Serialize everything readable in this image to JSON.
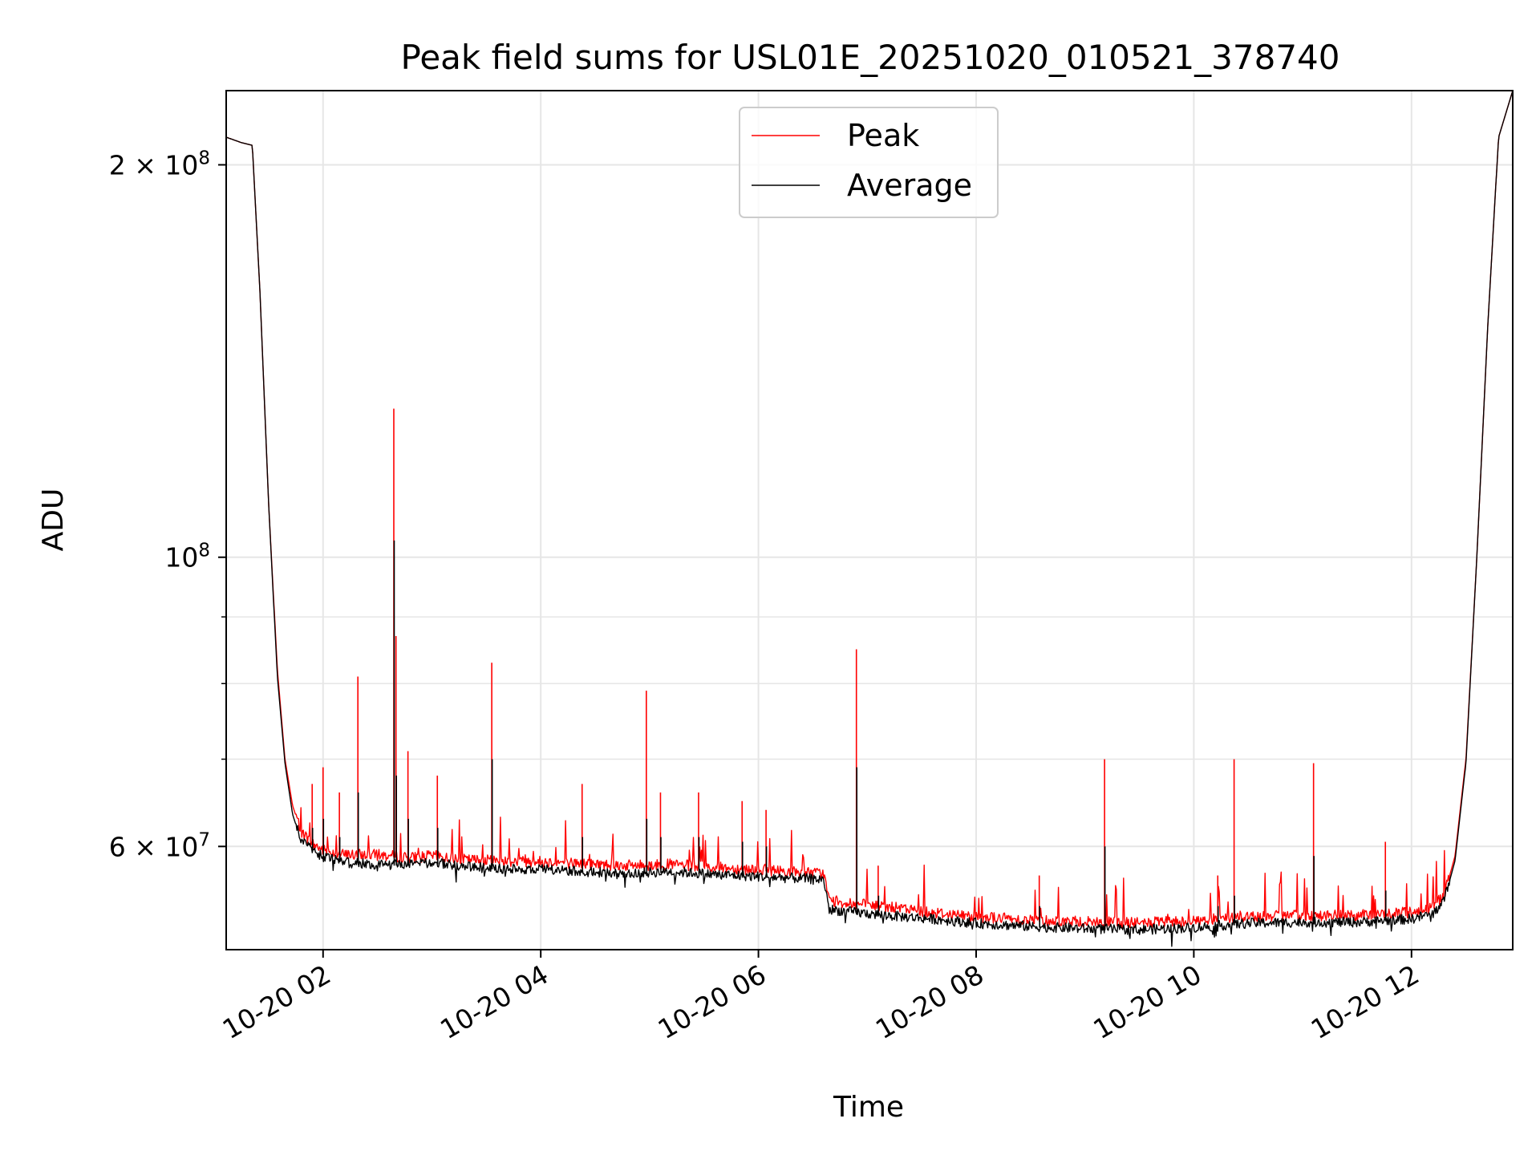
{
  "chart_data": {
    "type": "line",
    "title": "Peak field sums for USL01E_20251020_010521_378740",
    "xlabel": "Time",
    "ylabel": "ADU",
    "yscale": "log",
    "xlim": [
      1.11,
      12.93
    ],
    "ylim": [
      50000000,
      228000000
    ],
    "grid": true,
    "legend_position": "top-center",
    "x_ticks": [
      {
        "value": 2,
        "label": "10-20 02"
      },
      {
        "value": 4,
        "label": "10-20 04"
      },
      {
        "value": 6,
        "label": "10-20 06"
      },
      {
        "value": 8,
        "label": "10-20 08"
      },
      {
        "value": 10,
        "label": "10-20 10"
      },
      {
        "value": 12,
        "label": "10-20 12"
      }
    ],
    "y_major_ticks": [
      {
        "value": 200000000,
        "mant": "2",
        "base": "10",
        "exp": "8"
      },
      {
        "value": 100000000,
        "mant": "",
        "base": "10",
        "exp": "8"
      },
      {
        "value": 60000000,
        "mant": "6",
        "base": "10",
        "exp": "7"
      }
    ],
    "y_minor_ticks": [
      70000000,
      80000000,
      90000000
    ],
    "series": [
      {
        "name": "Peak",
        "color": "#ff0000",
        "x": [
          1.11,
          1.25,
          1.35,
          1.42,
          1.5,
          1.58,
          1.65,
          1.72,
          1.8,
          1.9,
          2.0,
          2.2,
          2.5,
          2.8,
          3.0,
          3.3,
          3.6,
          4.0,
          4.4,
          4.8,
          5.2,
          5.6,
          6.0,
          6.4,
          6.6,
          6.65,
          6.8,
          7.2,
          7.6,
          8.0,
          8.5,
          9.0,
          9.5,
          10.0,
          10.5,
          11.0,
          11.5,
          12.0,
          12.2,
          12.3,
          12.4,
          12.5,
          12.6,
          12.7,
          12.8,
          12.93
        ],
        "y": [
          210000000,
          208000000,
          207000000,
          160000000,
          110000000,
          82000000,
          70000000,
          64500000,
          61500000,
          60200000,
          59500000,
          59000000,
          59000000,
          58700000,
          58900000,
          58500000,
          58400000,
          58300000,
          58100000,
          57900000,
          58000000,
          57700000,
          57500000,
          57200000,
          57100000,
          54400000,
          54200000,
          53800000,
          53300000,
          52900000,
          52600000,
          52400000,
          52300000,
          52500000,
          52900000,
          53000000,
          53000000,
          53300000,
          53800000,
          55000000,
          59000000,
          70000000,
          100000000,
          150000000,
          210000000,
          228000000
        ]
      },
      {
        "name": "Average",
        "color": "#000000",
        "x": [
          1.11,
          1.25,
          1.35,
          1.42,
          1.5,
          1.58,
          1.65,
          1.72,
          1.8,
          1.9,
          2.0,
          2.2,
          2.5,
          2.8,
          3.0,
          3.3,
          3.6,
          4.0,
          4.4,
          4.8,
          5.2,
          5.6,
          6.0,
          6.4,
          6.6,
          6.65,
          6.8,
          7.2,
          7.6,
          8.0,
          8.5,
          9.0,
          9.5,
          10.0,
          10.5,
          11.0,
          11.5,
          12.0,
          12.2,
          12.3,
          12.4,
          12.5,
          12.6,
          12.7,
          12.8,
          12.93
        ],
        "y": [
          210000000,
          208000000,
          207000000,
          160000000,
          110000000,
          81000000,
          69500000,
          63500000,
          60500000,
          59500000,
          58800000,
          58200000,
          58000000,
          58000000,
          58200000,
          57800000,
          57600000,
          57500000,
          57300000,
          57100000,
          57300000,
          57000000,
          56800000,
          56600000,
          56500000,
          53600000,
          53400000,
          53000000,
          52700000,
          52300000,
          52000000,
          51800000,
          51700000,
          51900000,
          52300000,
          52400000,
          52400000,
          52700000,
          53200000,
          54500000,
          58500000,
          69500000,
          100000000,
          150000000,
          210000000,
          228000000
        ]
      }
    ],
    "spikes": [
      {
        "x": 1.9,
        "peak": 67000000,
        "avg": 62000000
      },
      {
        "x": 2.0,
        "peak": 69000000,
        "avg": 63000000
      },
      {
        "x": 2.15,
        "peak": 66000000,
        "avg": 61000000
      },
      {
        "x": 2.32,
        "peak": 81000000,
        "avg": 66000000
      },
      {
        "x": 2.65,
        "peak": 130000000,
        "avg": 103000000
      },
      {
        "x": 2.67,
        "peak": 87000000,
        "avg": 68000000
      },
      {
        "x": 2.78,
        "peak": 71000000,
        "avg": 63000000
      },
      {
        "x": 3.05,
        "peak": 68000000,
        "avg": 62000000
      },
      {
        "x": 3.55,
        "peak": 83000000,
        "avg": 70000000
      },
      {
        "x": 4.38,
        "peak": 67000000,
        "avg": 61000000
      },
      {
        "x": 4.97,
        "peak": 79000000,
        "avg": 63000000
      },
      {
        "x": 5.1,
        "peak": 66000000,
        "avg": 61000000
      },
      {
        "x": 5.45,
        "peak": 66000000,
        "avg": 61000000
      },
      {
        "x": 5.85,
        "peak": 65000000,
        "avg": 60500000
      },
      {
        "x": 6.07,
        "peak": 64000000,
        "avg": 60000000
      },
      {
        "x": 6.9,
        "peak": 85000000,
        "avg": 69000000
      },
      {
        "x": 7.1,
        "peak": 58000000,
        "avg": 55000000
      },
      {
        "x": 8.58,
        "peak": 57000000,
        "avg": 54000000
      },
      {
        "x": 9.18,
        "peak": 70000000,
        "avg": 60000000
      },
      {
        "x": 10.22,
        "peak": 57000000,
        "avg": 54000000
      },
      {
        "x": 10.37,
        "peak": 70000000,
        "avg": 55000000
      },
      {
        "x": 11.1,
        "peak": 69500000,
        "avg": 59000000
      },
      {
        "x": 11.76,
        "peak": 60500000,
        "avg": 55500000
      }
    ]
  }
}
